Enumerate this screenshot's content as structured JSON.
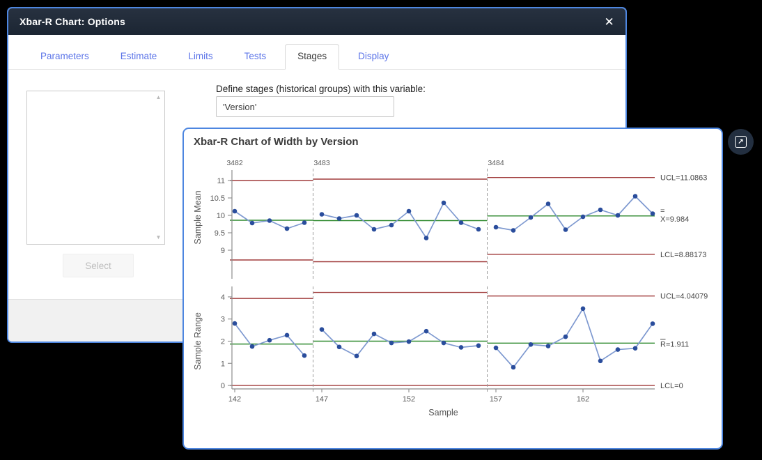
{
  "dialog": {
    "title": "Xbar-R Chart: Options",
    "tabs": [
      {
        "label": "Parameters",
        "active": false
      },
      {
        "label": "Estimate",
        "active": false
      },
      {
        "label": "Limits",
        "active": false
      },
      {
        "label": "Tests",
        "active": false
      },
      {
        "label": "Stages",
        "active": true
      },
      {
        "label": "Display",
        "active": false
      }
    ],
    "stages_panel": {
      "define_label": "Define stages (historical groups) with this variable:",
      "variable_value": "'Version'",
      "select_button": "Select"
    }
  },
  "chart_window": {
    "title": "Xbar-R Chart of Width by Version"
  },
  "icons": {
    "close": "✕",
    "scroll_up": "▲",
    "scroll_down": "▼",
    "expand": "↗"
  },
  "colors": {
    "accent_border": "#4d86e0",
    "titlebar": "#1f2937",
    "tab_link": "#5b74e8"
  },
  "chart_data": {
    "type": "line",
    "title": "Xbar-R Chart of Width by Version",
    "xlabel": "Sample",
    "x_ticks": [
      142,
      147,
      152,
      157,
      162
    ],
    "x_start": 142,
    "x_end": 166,
    "stage_labels": [
      "3482",
      "3483",
      "3484"
    ],
    "stage_starts": [
      142,
      147,
      157
    ],
    "stage_boundaries": [
      146.5,
      156.5
    ],
    "legend_position": "right",
    "grid": false,
    "colors": {
      "limit_line": "#a03b3b",
      "center_line": "#2f8a2f",
      "series_line": "#7e99d0",
      "marker": "#2a4d9c"
    },
    "panels": [
      {
        "ylabel": "Sample Mean",
        "y_ticks": [
          9,
          9.5,
          10,
          10.5,
          11
        ],
        "ylim": [
          8.64,
          11.24
        ],
        "annotations": {
          "ucl": "UCL=11.0863",
          "center_top": "=",
          "center": "X=9.984",
          "lcl": "LCL=8.88173"
        },
        "stages": [
          {
            "label": "3482",
            "ucl": 11.0,
            "cl": 9.86,
            "lcl": 8.72,
            "values": [
              10.12,
              9.78,
              9.85,
              9.62,
              9.79
            ]
          },
          {
            "label": "3483",
            "ucl": 11.04,
            "cl": 9.85,
            "lcl": 8.67,
            "values": [
              10.03,
              9.91,
              10.0,
              9.6,
              9.72,
              10.12,
              9.35,
              10.36,
              9.79,
              9.6
            ]
          },
          {
            "label": "3484",
            "ucl": 11.0863,
            "cl": 9.984,
            "lcl": 8.88173,
            "values": [
              9.66,
              9.57,
              9.94,
              10.33,
              9.59,
              9.96,
              10.16,
              10.0,
              10.55,
              10.05
            ]
          }
        ]
      },
      {
        "ylabel": "Sample Range",
        "y_ticks": [
          0,
          1,
          2,
          3,
          4
        ],
        "ylim": [
          -0.25,
          4.25
        ],
        "annotations": {
          "ucl": "UCL=4.04079",
          "center": "R=1.911",
          "center_bar": true,
          "lcl": "LCL=0"
        },
        "stages": [
          {
            "label": "3482",
            "ucl": 3.93,
            "cl": 1.87,
            "lcl": 0,
            "values": [
              2.8,
              1.76,
              2.04,
              2.27,
              1.35
            ]
          },
          {
            "label": "3483",
            "ucl": 4.2,
            "cl": 2.0,
            "lcl": 0,
            "values": [
              2.53,
              1.74,
              1.33,
              2.33,
              1.92,
              1.98,
              2.45,
              1.92,
              1.72,
              1.8
            ]
          },
          {
            "label": "3484",
            "ucl": 4.04079,
            "cl": 1.911,
            "lcl": 0,
            "values": [
              1.7,
              0.82,
              1.85,
              1.78,
              2.2,
              3.47,
              1.11,
              1.62,
              1.68,
              2.79
            ]
          }
        ]
      }
    ]
  }
}
